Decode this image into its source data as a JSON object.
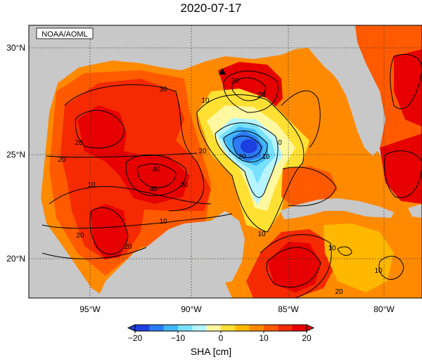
{
  "title": "2020-07-17",
  "credit": "NOAA/AOML",
  "lon_labels": [
    "95°W",
    "90°W",
    "85°W",
    "80°W"
  ],
  "lat_labels": [
    "30°N",
    "25°N",
    "20°N"
  ],
  "contour_labels": [
    "20",
    "40",
    "30",
    "10",
    "20",
    "10",
    "20",
    "40",
    "30",
    "20",
    "10",
    "10",
    "20",
    "30",
    "20",
    "0",
    "10",
    "20",
    "10",
    "20",
    "10"
  ],
  "colorbar": {
    "label": "SHA [cm]",
    "ticks": [
      "−20",
      "−10",
      "0",
      "10",
      "20"
    ],
    "colors": [
      "#1e3fe0",
      "#2b7bf5",
      "#3fb5fa",
      "#78e0ff",
      "#b6f5ff",
      "#fff8a0",
      "#ffe033",
      "#ffb800",
      "#ff8a00",
      "#ff5a00",
      "#f52a00",
      "#e60000"
    ]
  }
}
